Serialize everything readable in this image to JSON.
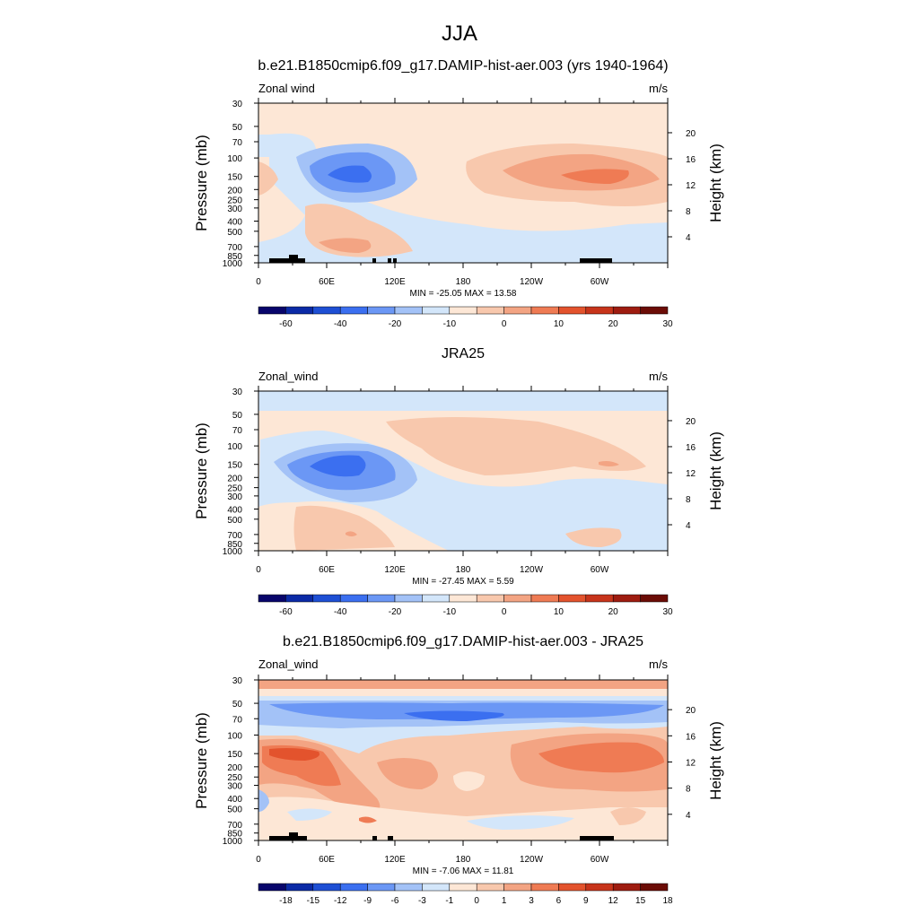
{
  "page": {
    "title": "JJA"
  },
  "chart_data": [
    {
      "type": "heatmap",
      "title": "b.e21.B1850cmip6.f09_g17.DAMIP-hist-aer.003 (yrs 1940-1964)",
      "left_label": "Zonal wind",
      "right_label": "m/s",
      "ylabel": "Pressure (mb)",
      "ylabel2": "Height (km)",
      "x_ticks": [
        "0",
        "60E",
        "120E",
        "180",
        "120W",
        "60W"
      ],
      "y_ticks": [
        "30",
        "50",
        "70",
        "100",
        "150",
        "200",
        "250",
        "300",
        "400",
        "500",
        "700",
        "850",
        "1000"
      ],
      "height_ticks": [
        "20",
        "16",
        "12",
        "8",
        "4"
      ],
      "stats": "MIN = -25.05  MAX =  13.58",
      "colorbar_labels": [
        "-60",
        "-40",
        "-20",
        "-10",
        "0",
        "10",
        "20",
        "30"
      ]
    },
    {
      "type": "heatmap",
      "title": "JRA25",
      "left_label": "Zonal_wind",
      "right_label": "m/s",
      "ylabel": "Pressure (mb)",
      "ylabel2": "Height (km)",
      "x_ticks": [
        "0",
        "60E",
        "120E",
        "180",
        "120W",
        "60W"
      ],
      "y_ticks": [
        "30",
        "50",
        "70",
        "100",
        "150",
        "200",
        "250",
        "300",
        "400",
        "500",
        "700",
        "850",
        "1000"
      ],
      "height_ticks": [
        "20",
        "16",
        "12",
        "8",
        "4"
      ],
      "stats": "MIN = -27.45  MAX =   5.59",
      "colorbar_labels": [
        "-60",
        "-40",
        "-20",
        "-10",
        "0",
        "10",
        "20",
        "30"
      ]
    },
    {
      "type": "heatmap",
      "title": "b.e21.B1850cmip6.f09_g17.DAMIP-hist-aer.003 - JRA25",
      "left_label": "Zonal_wind",
      "right_label": "m/s",
      "ylabel": "Pressure (mb)",
      "ylabel2": "Height (km)",
      "x_ticks": [
        "0",
        "60E",
        "120E",
        "180",
        "120W",
        "60W"
      ],
      "y_ticks": [
        "30",
        "50",
        "70",
        "100",
        "150",
        "200",
        "250",
        "300",
        "400",
        "500",
        "700",
        "850",
        "1000"
      ],
      "height_ticks": [
        "20",
        "16",
        "12",
        "8",
        "4"
      ],
      "stats": "MIN =  -7.06  MAX =  11.81",
      "colorbar_labels": [
        "-18",
        "-15",
        "-12",
        "-9",
        "-6",
        "-3",
        "-1",
        "0",
        "1",
        "3",
        "6",
        "9",
        "12",
        "15",
        "18"
      ]
    }
  ],
  "colorbar_colors": [
    "#08056b",
    "#0b2aa6",
    "#1e4fd4",
    "#3b6ff0",
    "#6b97f5",
    "#a3c2f7",
    "#d3e6fa",
    "#fde7d6",
    "#f8c8ad",
    "#f3a483",
    "#ef7b54",
    "#e3532d",
    "#c7341b",
    "#9e1c10",
    "#6b0c06"
  ]
}
